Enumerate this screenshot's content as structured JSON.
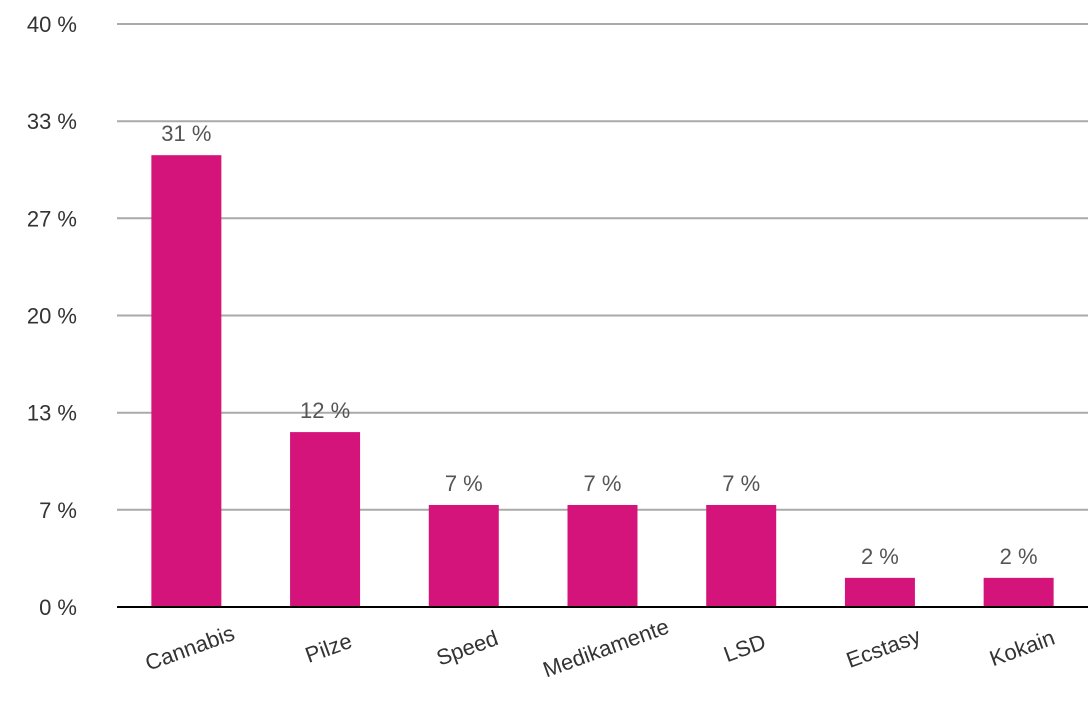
{
  "chart_data": {
    "type": "bar",
    "categories": [
      "Cannabis",
      "Pilze",
      "Speed",
      "Medikamente",
      "LSD",
      "Ecstasy",
      "Kokain"
    ],
    "values": [
      31,
      12,
      7,
      7,
      7,
      2,
      2
    ],
    "value_labels": [
      "31 %",
      "12 %",
      "7 %",
      "7 %",
      "7 %",
      "2 %",
      "2 %"
    ],
    "y_ticks": [
      0,
      6.67,
      13.33,
      20,
      26.67,
      33.33,
      40
    ],
    "y_tick_labels": [
      "0 %",
      "7 %",
      "13 %",
      "20 %",
      "27 %",
      "33 %",
      "40 %"
    ],
    "ylim": [
      0,
      40
    ],
    "grid": true,
    "legend": "none",
    "bar_color": "#d4147a",
    "xlabel_rotation_deg": -20
  }
}
